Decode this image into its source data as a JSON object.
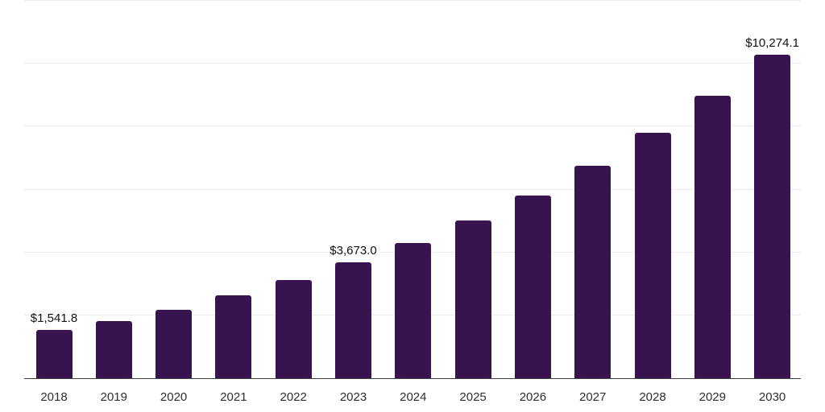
{
  "chart_data": {
    "type": "bar",
    "title": "",
    "xlabel": "",
    "ylabel": "",
    "categories": [
      "2018",
      "2019",
      "2020",
      "2021",
      "2022",
      "2023",
      "2024",
      "2025",
      "2026",
      "2027",
      "2028",
      "2029",
      "2030"
    ],
    "values": [
      1541.8,
      1810,
      2175,
      2640,
      3110,
      3673.0,
      4290,
      5020,
      5820,
      6750,
      7800,
      8980,
      10274.1
    ],
    "value_labels": [
      "$1,541.8",
      "",
      "",
      "",
      "",
      "$3,673.0",
      "",
      "",
      "",
      "",
      "",
      "",
      "$10,274.1"
    ],
    "ylim": [
      0,
      12000
    ],
    "gridline_values": [
      2000,
      4000,
      6000,
      8000,
      10000,
      12000
    ],
    "grid": "horizontal light-gray gridlines, no y-axis tick labels",
    "legend": "none",
    "colors": {
      "bar": "#371450",
      "grid_line": "#ededf0",
      "axis_line": "#3f3f3f",
      "value_label_text": "#111111",
      "axis_label_text": "#2e2e2e",
      "background": "#ffffff"
    }
  }
}
